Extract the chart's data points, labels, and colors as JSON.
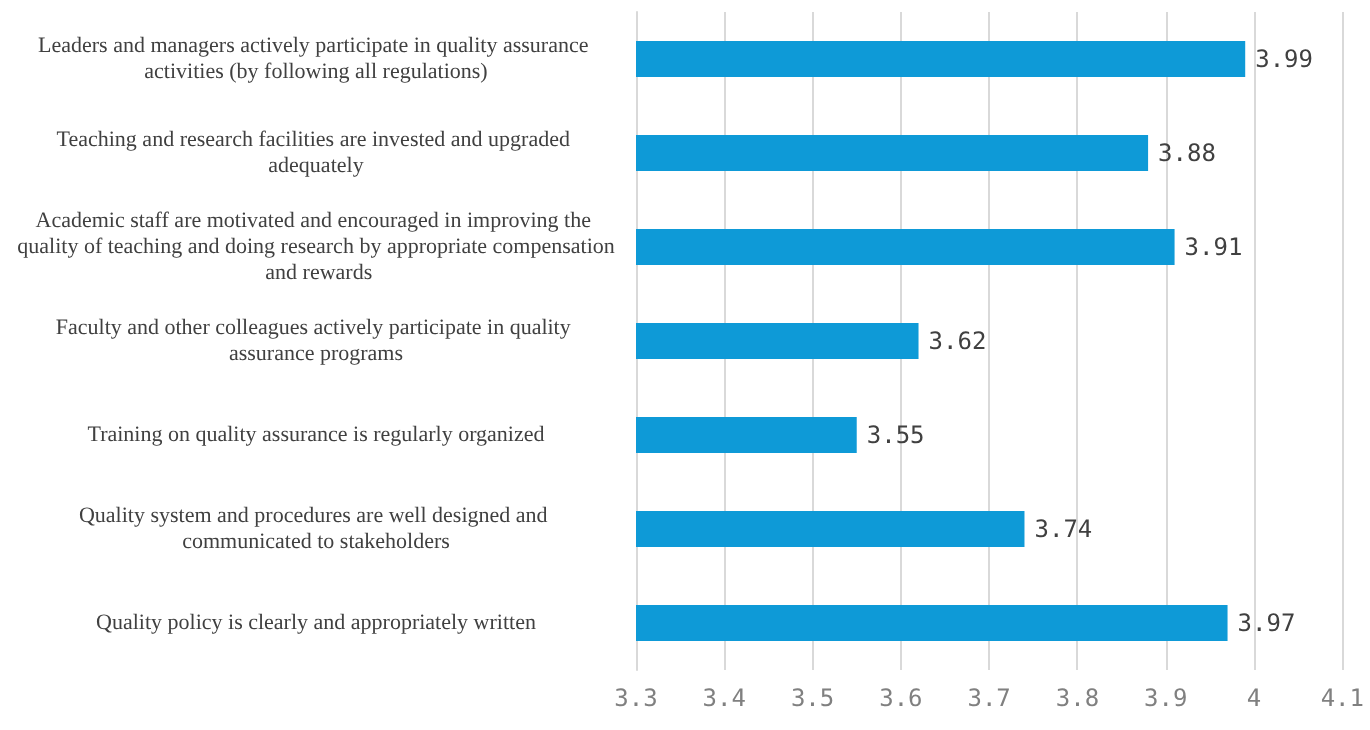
{
  "chart_data": {
    "type": "bar",
    "orientation": "horizontal",
    "categories": [
      "Leaders and managers actively participate in quality assurance activities (by following all regulations)",
      "Teaching and research facilities are invested and upgraded adequately",
      "Academic staff are motivated and encouraged in improving the quality of teaching and doing research by appropriate compensation and rewards",
      "Faculty and other colleagues actively participate in quality assurance programs",
      "Training on quality assurance is regularly organized",
      "Quality system and procedures are well designed and communicated to stakeholders",
      "Quality policy is clearly and appropriately written"
    ],
    "values": [
      3.99,
      3.88,
      3.91,
      3.62,
      3.55,
      3.74,
      3.97
    ],
    "color": "#0e9ad7",
    "xlim": [
      3.3,
      4.1
    ],
    "xticks": [
      3.3,
      3.4,
      3.5,
      3.6,
      3.7,
      3.8,
      3.9,
      4,
      4.1
    ],
    "grid": "x",
    "data_labels": true
  }
}
